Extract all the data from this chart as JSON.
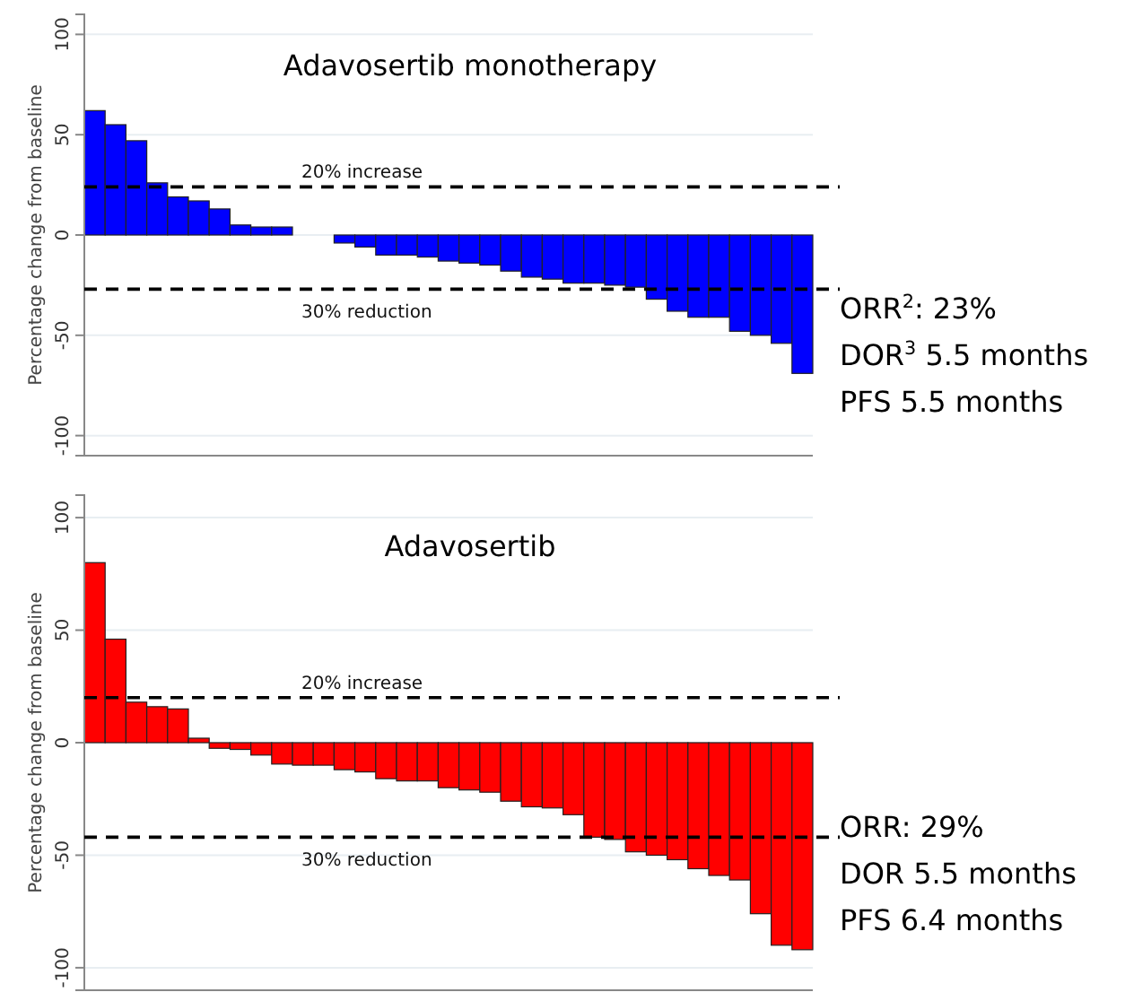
{
  "chart_data": [
    {
      "type": "bar",
      "title": "Adavosertib monotherapy",
      "ylabel": "Percentage change from baseline",
      "categories": [
        null,
        null,
        null,
        null,
        null,
        null,
        null,
        null,
        null,
        null,
        null,
        null,
        null,
        null,
        null,
        null,
        null,
        null,
        null,
        null,
        null,
        null,
        null,
        null,
        null,
        null,
        null,
        null,
        null,
        null,
        null,
        null,
        null,
        null,
        null
      ],
      "values": [
        62,
        55,
        47,
        26,
        19,
        17,
        13,
        5,
        4,
        4,
        null,
        0,
        -4,
        -6,
        -10,
        -10,
        -11,
        -13,
        -14,
        -15,
        -18,
        -21,
        -22,
        -24,
        -24,
        -25,
        -26,
        -32,
        -38,
        -41,
        -41,
        -48,
        -50,
        -54,
        -69
      ],
      "color": "#0000ff",
      "ylim": [
        -110,
        110
      ],
      "yticks": [
        -100,
        -50,
        0,
        50,
        100
      ],
      "grid": "y",
      "ref_lines": [
        {
          "axis": "y",
          "value": 24,
          "label": "20% increase",
          "color": "#000000",
          "line_style": "dashed"
        },
        {
          "axis": "y",
          "value": -27,
          "label": "30% reduction",
          "color": "#000000",
          "line_style": "dashed"
        }
      ],
      "annotations": [
        "ORR$^{2}$: 23%",
        "DOR$^{3}$ 5.5 months",
        "PFS 5.5 months"
      ]
    },
    {
      "type": "bar",
      "title": "Adavosertib",
      "ylabel": "Percentage change from baseline",
      "categories": [
        null,
        null,
        null,
        null,
        null,
        null,
        null,
        null,
        null,
        null,
        null,
        null,
        null,
        null,
        null,
        null,
        null,
        null,
        null,
        null,
        null,
        null,
        null,
        null,
        null,
        null,
        null,
        null,
        null,
        null,
        null,
        null,
        null,
        null,
        null
      ],
      "values": [
        80,
        46,
        18,
        16,
        15,
        2,
        -2.5,
        -3,
        -5.5,
        -9.5,
        -10,
        -10,
        -12,
        -13,
        -16,
        -17,
        -17,
        -20,
        -21,
        -22,
        -26,
        -28.5,
        -29,
        -32,
        -42,
        -43,
        -48.5,
        -50,
        -52,
        -56,
        -59,
        -61,
        -76,
        -90,
        -92
      ],
      "color": "#ff0000",
      "ylim": [
        -110,
        110
      ],
      "yticks": [
        -100,
        -50,
        0,
        50,
        100
      ],
      "grid": "y",
      "ref_lines": [
        {
          "axis": "y",
          "value": 20,
          "label": "20% increase",
          "color": "#000000",
          "line_style": "dashed"
        },
        {
          "axis": "y",
          "value": -42,
          "label": "30% reduction",
          "color": "#000000",
          "line_style": "dashed"
        }
      ],
      "annotations": [
        "ORR: 29%",
        "DOR 5.5 months",
        "PFS 6.4 months"
      ]
    }
  ]
}
